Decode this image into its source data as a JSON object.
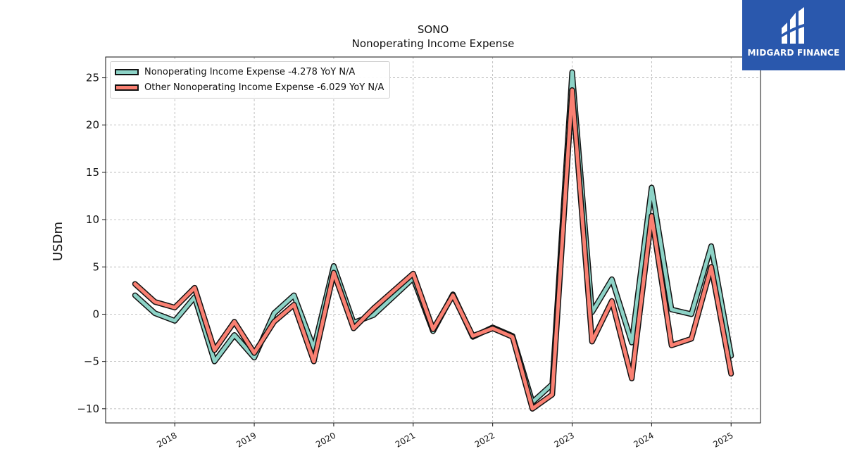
{
  "logo": {
    "brand": "MIDGARD FINANCE"
  },
  "chart_data": {
    "type": "line",
    "title": "SONO",
    "subtitle": "Nonoperating Income Expense",
    "ylabel": "USDm",
    "ylim": [
      -11.5,
      27.2
    ],
    "yticks": [
      -10,
      -5,
      0,
      5,
      10,
      15,
      20,
      25
    ],
    "ytick_labels": [
      "−10",
      "−5",
      "0",
      "5",
      "10",
      "15",
      "20",
      "25"
    ],
    "xlim": [
      2017.13,
      2025.37
    ],
    "xticks": [
      2018,
      2019,
      2020,
      2021,
      2022,
      2023,
      2024,
      2025
    ],
    "xtick_labels": [
      "2018",
      "2019",
      "2020",
      "2021",
      "2022",
      "2023",
      "2024",
      "2025"
    ],
    "grid": true,
    "legend_position": "top-left",
    "x": [
      2017.5,
      2017.75,
      2018.0,
      2018.25,
      2018.5,
      2018.75,
      2019.0,
      2019.25,
      2019.5,
      2019.75,
      2020.0,
      2020.25,
      2020.5,
      2021.0,
      2021.25,
      2021.5,
      2021.75,
      2022.0,
      2022.25,
      2022.5,
      2022.75,
      2023.0,
      2023.25,
      2023.5,
      2023.75,
      2024.0,
      2024.25,
      2024.5,
      2024.75,
      2025.0
    ],
    "series": [
      {
        "name": "Nonoperating Income Expense",
        "legend_label": "Nonoperating Income Expense  -4.278 YoY N/A",
        "color": "#8dd3c7",
        "values": [
          2.0,
          0.1,
          -0.7,
          1.8,
          -5.0,
          -2.2,
          -4.6,
          0.1,
          2.0,
          -3.6,
          5.1,
          -0.9,
          -0.1,
          3.8,
          -1.8,
          2.1,
          -2.4,
          -1.4,
          -2.3,
          -9.3,
          -7.4,
          25.6,
          0.2,
          3.7,
          -3.0,
          13.4,
          0.5,
          0.0,
          7.2,
          -4.4
        ]
      },
      {
        "name": "Other Nonoperating Income Expense",
        "legend_label": "Other Nonoperating Income Expense  -6.029 YoY N/A",
        "color": "#fa8072",
        "values": [
          3.2,
          1.3,
          0.7,
          2.8,
          -3.8,
          -0.8,
          -4.1,
          -0.8,
          1.0,
          -5.0,
          4.4,
          -1.5,
          0.6,
          4.3,
          -1.6,
          2.0,
          -2.3,
          -1.5,
          -2.4,
          -10.0,
          -8.5,
          23.7,
          -2.9,
          1.4,
          -6.8,
          10.4,
          -3.3,
          -2.6,
          5.0,
          -6.3
        ]
      }
    ]
  }
}
